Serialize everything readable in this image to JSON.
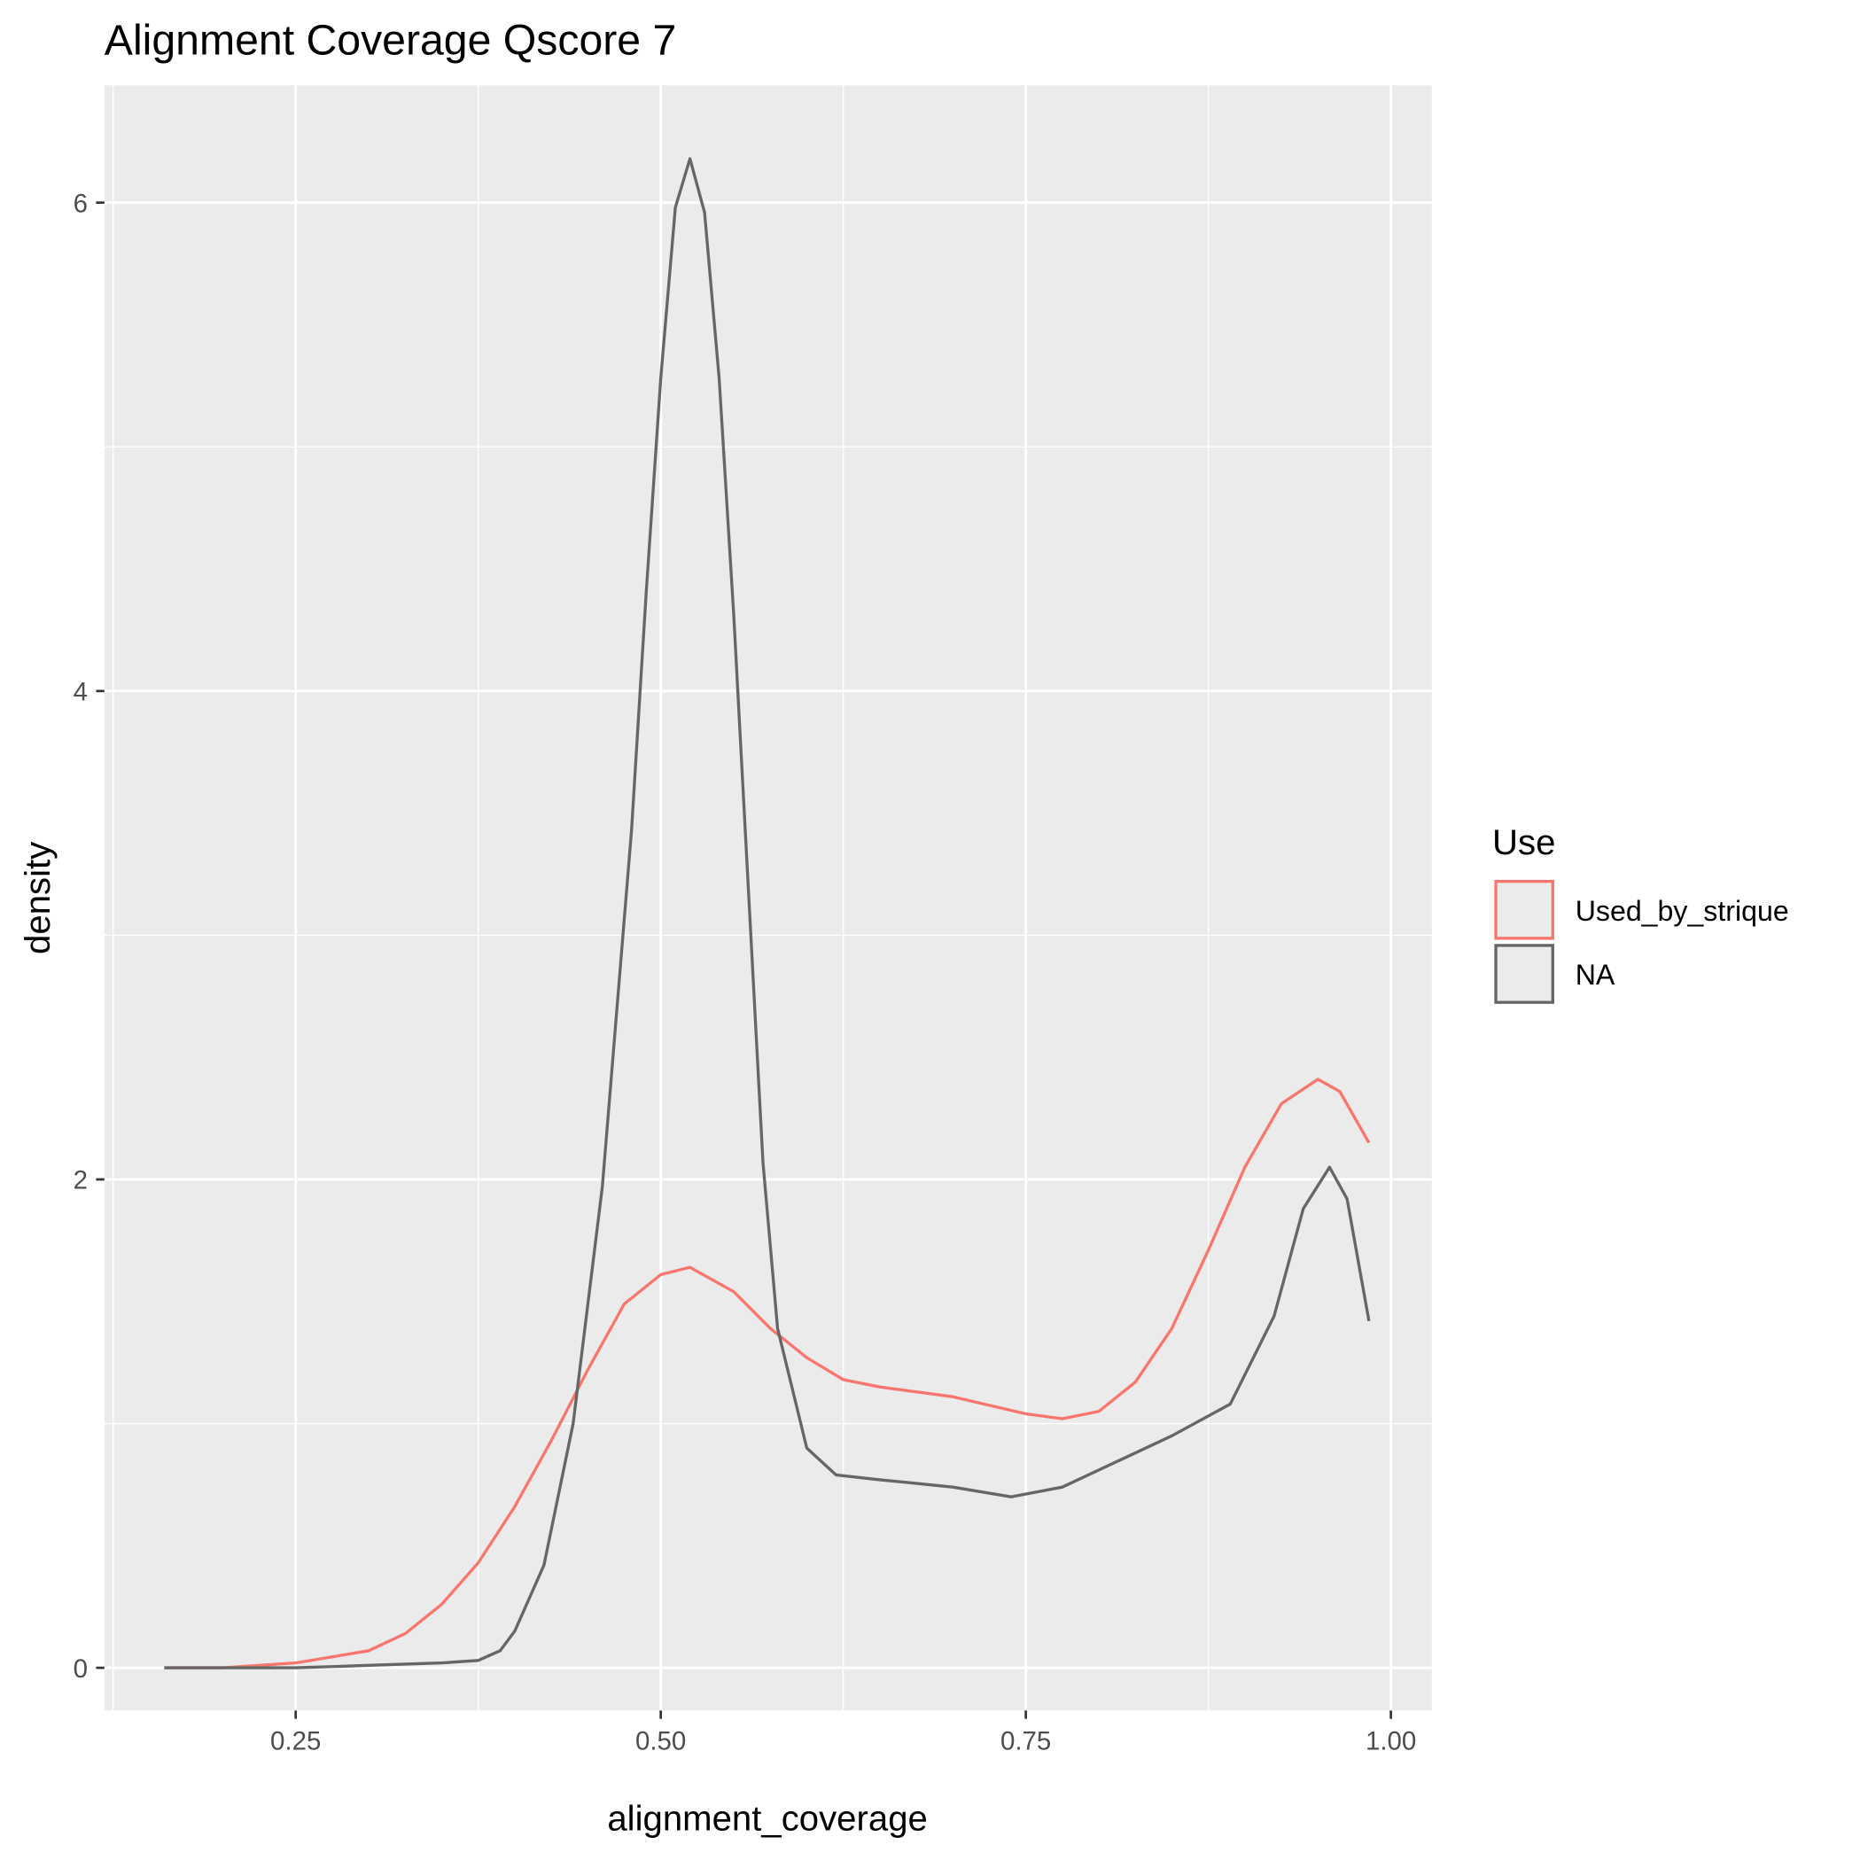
{
  "chart_data": {
    "type": "line",
    "title": "Alignment Coverage Qscore 7",
    "x_label": "alignment_coverage",
    "y_label": "density",
    "legend_title": "Use",
    "legend_position": "right",
    "xlim": [
      0.119,
      1.028
    ],
    "ylim": [
      -0.175,
      6.48
    ],
    "xticks": [
      {
        "value": 0.25,
        "label": "0.25"
      },
      {
        "value": 0.5,
        "label": "0.50"
      },
      {
        "value": 0.75,
        "label": "0.75"
      },
      {
        "value": 1,
        "label": "1.00"
      }
    ],
    "yticks": [
      0,
      2,
      4,
      6
    ],
    "grid": true,
    "series": [
      {
        "name": "Used_by_strique",
        "color": "#F8766D",
        "x": [
          0.16,
          0.2,
          0.25,
          0.3,
          0.325,
          0.35,
          0.375,
          0.4,
          0.425,
          0.45,
          0.475,
          0.5,
          0.52,
          0.55,
          0.575,
          0.6,
          0.625,
          0.65,
          0.7,
          0.75,
          0.775,
          0.8,
          0.825,
          0.85,
          0.875,
          0.9,
          0.925,
          0.95,
          0.965,
          0.985
        ],
        "values": [
          0,
          0,
          0.02,
          0.07,
          0.14,
          0.26,
          0.43,
          0.66,
          0.93,
          1.22,
          1.49,
          1.61,
          1.64,
          1.54,
          1.39,
          1.27,
          1.18,
          1.15,
          1.11,
          1.04,
          1.02,
          1.05,
          1.17,
          1.39,
          1.71,
          2.05,
          2.31,
          2.41,
          2.36,
          2.15
        ]
      },
      {
        "name": "NA",
        "color": "#666666",
        "x": [
          0.16,
          0.25,
          0.3,
          0.35,
          0.375,
          0.39,
          0.4,
          0.42,
          0.44,
          0.46,
          0.48,
          0.49,
          0.5,
          0.51,
          0.52,
          0.53,
          0.54,
          0.55,
          0.56,
          0.57,
          0.58,
          0.6,
          0.62,
          0.65,
          0.7,
          0.74,
          0.775,
          0.8,
          0.85,
          0.89,
          0.92,
          0.94,
          0.958,
          0.97,
          0.985
        ],
        "values": [
          0,
          0,
          0.01,
          0.02,
          0.03,
          0.07,
          0.15,
          0.42,
          1.0,
          1.97,
          3.43,
          4.4,
          5.28,
          5.98,
          6.18,
          5.96,
          5.28,
          4.31,
          3.19,
          2.07,
          1.39,
          0.9,
          0.79,
          0.77,
          0.74,
          0.7,
          0.74,
          0.81,
          0.95,
          1.08,
          1.44,
          1.88,
          2.05,
          1.92,
          1.42
        ]
      }
    ]
  }
}
